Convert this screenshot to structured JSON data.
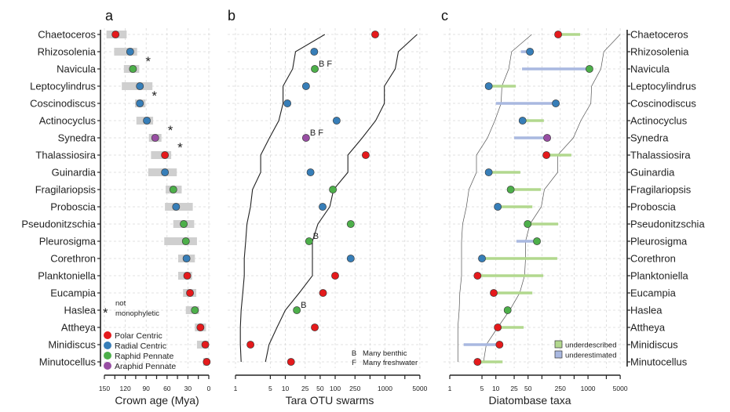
{
  "taxa": [
    "Chaetoceros",
    "Rhizosolenia",
    "Navicula",
    "Leptocylindrus",
    "Coscinodiscus",
    "Actinocyclus",
    "Synedra",
    "Thalassiosira",
    "Guinardia",
    "Fragilariopsis",
    "Proboscia",
    "Pseudonitzschia",
    "Pleurosigma",
    "Corethron",
    "Planktoniella",
    "Eucampia",
    "Haslea",
    "Attheya",
    "Minidiscus",
    "Minutocellus"
  ],
  "groups": {
    "polar": {
      "label": "Polar Centric",
      "color": "#e41a1c"
    },
    "radial": {
      "label": "Radial Centric",
      "color": "#377eb8"
    },
    "raphid": {
      "label": "Raphid Pennate",
      "color": "#4daf4a"
    },
    "araphid": {
      "label": "Araphid Pennate",
      "color": "#984ea3"
    }
  },
  "taxon_groups": [
    "polar",
    "radial",
    "raphid",
    "radial",
    "radial",
    "radial",
    "araphid",
    "polar",
    "radial",
    "raphid",
    "radial",
    "raphid",
    "raphid",
    "radial",
    "polar",
    "polar",
    "raphid",
    "polar",
    "polar",
    "polar"
  ],
  "chart_data": [
    {
      "panel": "a",
      "type": "scatter",
      "xlabel": "Crown age (Mya)",
      "xlim": [
        150,
        0
      ],
      "xticks": [
        150,
        120,
        90,
        60,
        30,
        0
      ],
      "reversed": true,
      "grid": true,
      "crown_age": [
        134,
        113,
        109,
        99,
        99,
        89,
        77,
        63,
        63,
        51,
        47,
        36,
        33,
        32,
        31,
        27,
        20,
        12,
        5,
        3
      ],
      "age_range": [
        [
          147,
          118
        ],
        [
          136,
          103
        ],
        [
          122,
          100
        ],
        [
          125,
          81
        ],
        [
          106,
          91
        ],
        [
          104,
          80
        ],
        [
          86,
          68
        ],
        [
          83,
          54
        ],
        [
          87,
          46
        ],
        [
          62,
          39
        ],
        [
          63,
          23
        ],
        [
          51,
          21
        ],
        [
          64,
          17
        ],
        [
          44,
          20
        ],
        [
          44,
          24
        ],
        [
          37,
          18
        ],
        [
          33,
          14
        ],
        [
          20,
          4
        ],
        [
          17,
          0
        ],
        [
          8,
          0
        ]
      ],
      "not_monophyletic": [
        "Navicula",
        "Coscinodiscus",
        "Synedra",
        "Thalassiosira"
      ],
      "legend": {
        "star_label": "not monophyletic",
        "star_symbol": "*",
        "placement": "bottom-left"
      }
    },
    {
      "panel": "b",
      "type": "scatter",
      "xlabel": "Tara OTU swarms",
      "xscale": "log",
      "xlim": [
        1,
        5000
      ],
      "xticks": [
        1,
        5,
        10,
        25,
        50,
        100,
        250,
        500,
        1000,
        2500,
        5000
      ],
      "xticklabels": [
        "1",
        "5",
        "10",
        "25",
        "50",
        "100",
        "250",
        "",
        "1000",
        "",
        "5000"
      ],
      "grid": true,
      "values": [
        635,
        38,
        39,
        26,
        11,
        107,
        26,
        410,
        32,
        90,
        56,
        205,
        30,
        205,
        100,
        57,
        17,
        39,
        2,
        13
      ],
      "annotations": {
        "Navicula": "B F",
        "Synedra": "B F",
        "Pleurosigma": "B",
        "Haslea": "B"
      },
      "lower_curve": [
        62,
        16,
        14,
        9,
        9,
        7.4,
        4.8,
        3.2,
        3.2,
        2.2,
        2.0,
        1.7,
        1.6,
        1.5,
        1.5,
        1.4,
        1.3,
        1.25,
        1.25,
        1.3
      ],
      "upper_curve": [
        4400,
        1850,
        1600,
        970,
        970,
        650,
        350,
        180,
        180,
        93,
        78,
        45,
        35,
        35,
        35,
        19,
        10,
        6.8,
        4.7,
        4.0
      ],
      "legend": {
        "items": [
          {
            "key": "B",
            "label": "Many benthic"
          },
          {
            "key": "F",
            "label": "Many freshwater"
          }
        ],
        "placement": "bottom-right"
      }
    },
    {
      "panel": "c",
      "type": "scatter",
      "xlabel": "Diatombase taxa",
      "xscale": "log",
      "xlim": [
        1,
        5000
      ],
      "xticks": [
        1,
        5,
        10,
        25,
        50,
        100,
        250,
        500,
        1000,
        2500,
        5000
      ],
      "xticklabels": [
        "1",
        "5",
        "10",
        "25",
        "50",
        "",
        "250",
        "",
        "1000",
        "",
        "5000"
      ],
      "grid": true,
      "values": [
        225,
        55,
        1075,
        7,
        200,
        38,
        130,
        125,
        7,
        21,
        11,
        49,
        78,
        5,
        4,
        9,
        18,
        11,
        12,
        4
      ],
      "gap_type": [
        "under",
        "over",
        "over",
        "under",
        "over",
        "under",
        "over",
        "under",
        "under",
        "under",
        "under",
        "under",
        "over",
        "under",
        "under",
        "under",
        "none",
        "under",
        "over",
        "under"
      ],
      "gap_to": [
        675,
        35,
        37,
        27,
        10,
        110,
        25,
        435,
        34,
        95,
        62,
        225,
        28,
        215,
        107,
        62,
        null,
        40,
        2,
        14
      ],
      "lower_curve": [
        60,
        22,
        19,
        13.5,
        13,
        9.5,
        6.6,
        3.8,
        3.8,
        2.6,
        2.3,
        1.9,
        1.8,
        1.8,
        1.8,
        1.65,
        1.6,
        1.5,
        1.5,
        1.5
      ],
      "upper_curve": [
        5000,
        2200,
        1900,
        1200,
        1150,
        700,
        480,
        220,
        220,
        113,
        97,
        55,
        44,
        44,
        42,
        33,
        20,
        11,
        6.2,
        5.4
      ],
      "legend": {
        "items": [
          {
            "key": "under",
            "label": "underdescribed",
            "color": "#b2d88e"
          },
          {
            "key": "over",
            "label": "underestimated",
            "color": "#a9b8e0"
          }
        ],
        "placement": "bottom-right"
      }
    }
  ],
  "panels": {
    "a": "a",
    "b": "b",
    "c": "c"
  }
}
